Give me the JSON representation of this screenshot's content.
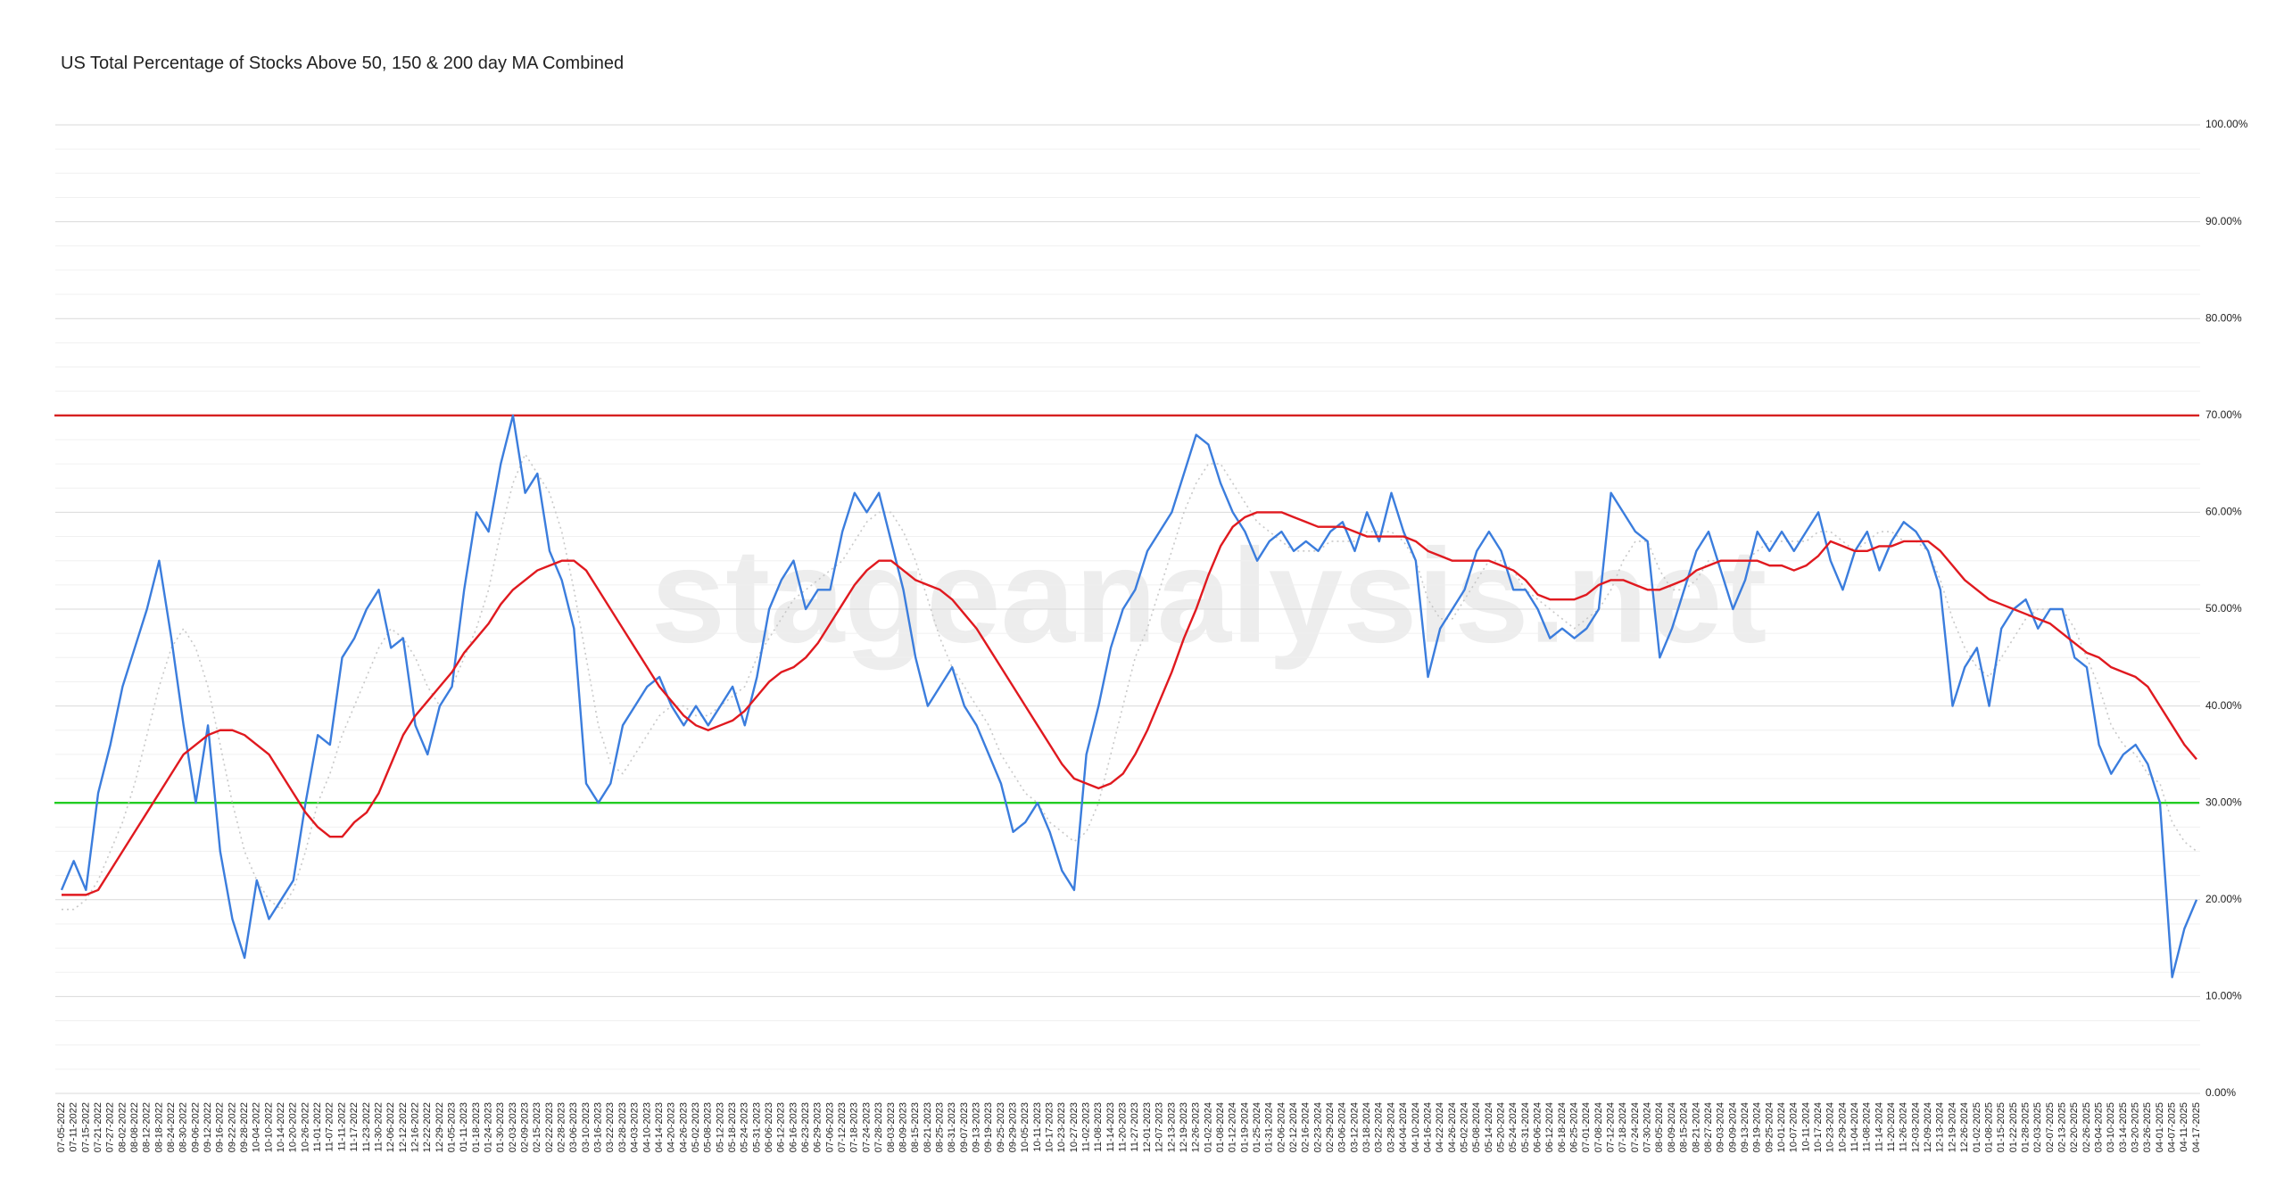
{
  "chart_data": {
    "type": "line",
    "title": "US Total Percentage of Stocks Above 50, 150 & 200 day MA Combined",
    "watermark": "stageanalysis.net",
    "categories": [
      "07-05-2022",
      "07-11-2022",
      "07-15-2022",
      "07-21-2022",
      "07-27-2022",
      "08-02-2022",
      "08-08-2022",
      "08-12-2022",
      "08-18-2022",
      "08-24-2022",
      "08-30-2022",
      "09-06-2022",
      "09-12-2022",
      "09-16-2022",
      "09-22-2022",
      "09-28-2022",
      "10-04-2022",
      "10-10-2022",
      "10-14-2022",
      "10-20-2022",
      "10-26-2022",
      "11-01-2022",
      "11-07-2022",
      "11-11-2022",
      "11-17-2022",
      "11-23-2022",
      "11-30-2022",
      "12-06-2022",
      "12-12-2022",
      "12-16-2022",
      "12-22-2022",
      "12-29-2022",
      "01-05-2023",
      "01-11-2023",
      "01-18-2023",
      "01-24-2023",
      "01-30-2023",
      "02-03-2023",
      "02-09-2023",
      "02-15-2023",
      "02-22-2023",
      "02-28-2023",
      "03-06-2023",
      "03-10-2023",
      "03-16-2023",
      "03-22-2023",
      "03-28-2023",
      "04-03-2023",
      "04-10-2023",
      "04-14-2023",
      "04-20-2023",
      "04-26-2023",
      "05-02-2023",
      "05-08-2023",
      "05-12-2023",
      "05-18-2023",
      "05-24-2023",
      "05-31-2023",
      "06-06-2023",
      "06-12-2023",
      "06-16-2023",
      "06-23-2023",
      "06-29-2023",
      "07-06-2023",
      "07-12-2023",
      "07-18-2023",
      "07-24-2023",
      "07-28-2023",
      "08-03-2023",
      "08-09-2023",
      "08-15-2023",
      "08-21-2023",
      "08-25-2023",
      "08-31-2023",
      "09-07-2023",
      "09-13-2023",
      "09-19-2023",
      "09-25-2023",
      "09-29-2023",
      "10-05-2023",
      "10-11-2023",
      "10-17-2023",
      "10-23-2023",
      "10-27-2023",
      "11-02-2023",
      "11-08-2023",
      "11-14-2023",
      "11-20-2023",
      "11-27-2023",
      "12-01-2023",
      "12-07-2023",
      "12-13-2023",
      "12-19-2023",
      "12-26-2023",
      "01-02-2024",
      "01-08-2024",
      "01-12-2024",
      "01-19-2024",
      "01-25-2024",
      "01-31-2024",
      "02-06-2024",
      "02-12-2024",
      "02-16-2024",
      "02-23-2024",
      "02-29-2024",
      "03-06-2024",
      "03-12-2024",
      "03-18-2024",
      "03-22-2024",
      "03-28-2024",
      "04-04-2024",
      "04-10-2024",
      "04-16-2024",
      "04-22-2024",
      "04-26-2024",
      "05-02-2024",
      "05-08-2024",
      "05-14-2024",
      "05-20-2024",
      "05-24-2024",
      "05-31-2024",
      "06-06-2024",
      "06-12-2024",
      "06-18-2024",
      "06-25-2024",
      "07-01-2024",
      "07-08-2024",
      "07-12-2024",
      "07-18-2024",
      "07-24-2024",
      "07-30-2024",
      "08-05-2024",
      "08-09-2024",
      "08-15-2024",
      "08-21-2024",
      "08-27-2024",
      "09-03-2024",
      "09-09-2024",
      "09-13-2024",
      "09-19-2024",
      "09-25-2024",
      "10-01-2024",
      "10-07-2024",
      "10-11-2024",
      "10-17-2024",
      "10-23-2024",
      "10-29-2024",
      "11-04-2024",
      "11-08-2024",
      "11-14-2024",
      "11-20-2024",
      "11-26-2024",
      "12-03-2024",
      "12-09-2024",
      "12-13-2024",
      "12-19-2024",
      "12-26-2024",
      "01-02-2025",
      "01-08-2025",
      "01-15-2025",
      "01-22-2025",
      "01-28-2025",
      "02-03-2025",
      "02-07-2025",
      "02-13-2025",
      "02-20-2025",
      "02-26-2025",
      "03-04-2025",
      "03-10-2025",
      "03-14-2025",
      "03-20-2025",
      "03-26-2025",
      "04-01-2025",
      "04-07-2025",
      "04-11-2025",
      "04-17-2025"
    ],
    "series": [
      {
        "color": "#c8c8c8",
        "dash": true,
        "width": 1.6,
        "values": [
          19,
          19,
          20,
          22,
          25,
          28,
          32,
          37,
          42,
          46,
          48,
          46,
          42,
          36,
          30,
          25,
          22,
          20,
          19,
          21,
          25,
          30,
          33,
          37,
          40,
          43,
          46,
          48,
          47,
          45,
          42,
          40,
          42,
          45,
          48,
          52,
          58,
          63,
          66,
          64,
          62,
          58,
          52,
          45,
          38,
          34,
          33,
          35,
          37,
          39,
          40,
          40,
          39,
          39,
          40,
          41,
          42,
          45,
          47,
          49,
          51,
          52,
          53,
          54,
          55,
          57,
          59,
          60,
          60,
          58,
          55,
          51,
          47,
          44,
          42,
          40,
          38,
          35,
          33,
          31,
          30,
          28,
          27,
          26,
          27,
          30,
          35,
          40,
          45,
          48,
          52,
          56,
          60,
          63,
          65,
          65,
          63,
          61,
          59,
          58,
          57,
          56,
          56,
          56,
          57,
          57,
          57,
          58,
          58,
          58,
          57,
          55,
          51,
          49,
          49,
          51,
          53,
          55,
          55,
          54,
          52,
          51,
          50,
          49,
          48,
          49,
          50,
          52,
          55,
          57,
          57,
          54,
          52,
          52,
          53,
          55,
          55,
          55,
          55,
          56,
          57,
          57,
          57,
          57,
          58,
          58,
          57,
          56,
          57,
          58,
          58,
          57,
          57,
          56,
          53,
          49,
          46,
          44,
          43,
          45,
          47,
          49,
          50,
          50,
          50,
          48,
          45,
          42,
          38,
          36,
          35,
          33,
          32,
          28,
          26,
          25
        ]
      },
      {
        "color": "#3b7ddd",
        "dash": false,
        "width": 2.4,
        "values": [
          21,
          24,
          21,
          31,
          36,
          42,
          46,
          50,
          55,
          47,
          38,
          30,
          38,
          25,
          18,
          14,
          22,
          18,
          20,
          22,
          30,
          37,
          36,
          45,
          47,
          50,
          52,
          46,
          47,
          38,
          35,
          40,
          42,
          52,
          60,
          58,
          65,
          70,
          62,
          64,
          56,
          53,
          48,
          32,
          30,
          32,
          38,
          40,
          42,
          43,
          40,
          38,
          40,
          38,
          40,
          42,
          38,
          43,
          50,
          53,
          55,
          50,
          52,
          52,
          58,
          62,
          60,
          62,
          57,
          52,
          45,
          40,
          42,
          44,
          40,
          38,
          35,
          32,
          27,
          28,
          30,
          27,
          23,
          21,
          35,
          40,
          46,
          50,
          52,
          56,
          58,
          60,
          64,
          68,
          67,
          63,
          60,
          58,
          55,
          57,
          58,
          56,
          57,
          56,
          58,
          59,
          56,
          60,
          57,
          62,
          58,
          55,
          43,
          48,
          50,
          52,
          56,
          58,
          56,
          52,
          52,
          50,
          47,
          48,
          47,
          48,
          50,
          62,
          60,
          58,
          57,
          45,
          48,
          52,
          56,
          58,
          54,
          50,
          53,
          58,
          56,
          58,
          56,
          58,
          60,
          55,
          52,
          56,
          58,
          54,
          57,
          59,
          58,
          56,
          52,
          40,
          44,
          46,
          40,
          48,
          50,
          51,
          48,
          50,
          50,
          45,
          44,
          36,
          33,
          35,
          36,
          34,
          30,
          12,
          17,
          20
        ]
      },
      {
        "color": "#e0191f",
        "dash": false,
        "width": 2.4,
        "values": [
          20.5,
          20.5,
          20.5,
          21,
          23,
          25,
          27,
          29,
          31,
          33,
          35,
          36,
          37,
          37.5,
          37.5,
          37,
          36,
          35,
          33,
          31,
          29,
          27.5,
          26.5,
          26.5,
          28,
          29,
          31,
          34,
          37,
          39,
          40.5,
          42,
          43.5,
          45.5,
          47,
          48.5,
          50.5,
          52,
          53,
          54,
          54.5,
          55,
          55,
          54,
          52,
          50,
          48,
          46,
          44,
          42,
          40.5,
          39,
          38,
          37.5,
          38,
          38.5,
          39.5,
          41,
          42.5,
          43.5,
          44,
          45,
          46.5,
          48.5,
          50.5,
          52.5,
          54,
          55,
          55,
          54,
          53,
          52.5,
          52,
          51,
          49.5,
          48,
          46,
          44,
          42,
          40,
          38,
          36,
          34,
          32.5,
          32,
          31.5,
          32,
          33,
          35,
          37.5,
          40.5,
          43.5,
          47,
          50,
          53.5,
          56.5,
          58.5,
          59.5,
          60,
          60,
          60,
          59.5,
          59,
          58.5,
          58.5,
          58.5,
          58,
          57.5,
          57.5,
          57.5,
          57.5,
          57,
          56,
          55.5,
          55,
          55,
          55,
          55,
          54.5,
          54,
          53,
          51.5,
          51,
          51,
          51,
          51.5,
          52.5,
          53,
          53,
          52.5,
          52,
          52,
          52.5,
          53,
          54,
          54.5,
          55,
          55,
          55,
          55,
          54.5,
          54.5,
          54,
          54.5,
          55.5,
          57,
          56.5,
          56,
          56,
          56.5,
          56.5,
          57,
          57,
          57,
          56,
          54.5,
          53,
          52,
          51,
          50.5,
          50,
          49.5,
          49,
          48.5,
          47.5,
          46.5,
          45.5,
          45,
          44,
          43.5,
          43,
          42,
          40,
          38,
          36,
          34.5
        ]
      }
    ],
    "reference_lines": [
      {
        "value": 70,
        "color": "#d62020"
      },
      {
        "value": 30,
        "color": "#22cc22"
      }
    ],
    "ylim": [
      0,
      100
    ],
    "yticks": [
      {
        "value": 0,
        "label": "0.00%"
      },
      {
        "value": 10,
        "label": "10.00%"
      },
      {
        "value": 20,
        "label": "20.00%"
      },
      {
        "value": 30,
        "label": "30.00%"
      },
      {
        "value": 40,
        "label": "40.00%"
      },
      {
        "value": 50,
        "label": "50.00%"
      },
      {
        "value": 60,
        "label": "60.00%"
      },
      {
        "value": 70,
        "label": "70.00%"
      },
      {
        "value": 80,
        "label": "80.00%"
      },
      {
        "value": 90,
        "label": "90.00%"
      },
      {
        "value": 100,
        "label": "100.00%"
      }
    ],
    "minor_yticks": [
      2.5,
      5,
      7.5,
      12.5,
      15,
      17.5,
      22.5,
      25,
      27.5,
      32.5,
      35,
      37.5,
      42.5,
      45,
      47.5,
      52.5,
      55,
      57.5,
      62.5,
      65,
      67.5,
      72.5,
      75,
      77.5,
      82.5,
      85,
      87.5,
      92.5,
      95,
      97.5
    ],
    "grid": true
  }
}
